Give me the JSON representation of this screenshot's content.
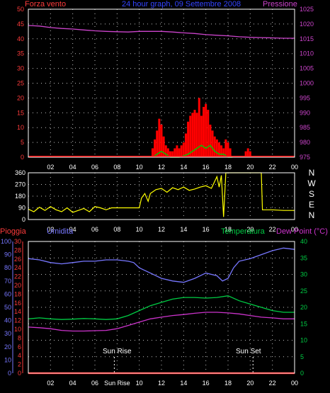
{
  "header": {
    "left": "Forza vento",
    "center": "24 hour graph, 09 Settembre 2008",
    "right": "Pressione"
  },
  "legend": {
    "pioggia": "Pioggia",
    "umidita": "Umidita",
    "temperatura": "Temperatura",
    "dewpoint": "Dew Point (°C)"
  },
  "markers": {
    "sunrise": "Sun Rise",
    "sunset": "Sun Set"
  },
  "compass": [
    "N",
    "W",
    "S",
    "E",
    "N"
  ],
  "colors": {
    "background": "#000000",
    "axes": "#ffffff",
    "grid": "#ffffff",
    "wind_speed": "#ff0000",
    "wind_gust": "#00cc00",
    "pressure": "#cc44cc",
    "direction": "#ffff00",
    "humidity": "#7777ff",
    "temperature": "#00cc44",
    "dewpoint": "#cc33cc",
    "rain": "#ff0000"
  },
  "chart_data": [
    {
      "type": "line",
      "panel": "wind_pressure",
      "title": "24 hour graph, 09 Settembre 2008",
      "x_tick_labels": [
        "02",
        "04",
        "06",
        "08",
        "10",
        "12",
        "14",
        "16",
        "18",
        "20",
        "22",
        "00"
      ],
      "x_range_hours": [
        0,
        24
      ],
      "y_left": {
        "label": "Forza vento",
        "ticks": [
          0,
          5,
          10,
          15,
          20,
          25,
          30,
          35,
          40,
          45,
          50
        ],
        "ylim": [
          0,
          50
        ]
      },
      "y_right": {
        "label": "Pressione",
        "ticks": [
          975,
          980,
          985,
          990,
          995,
          1000,
          1005,
          1010,
          1015,
          1020,
          1025
        ],
        "ylim": [
          975,
          1025
        ]
      },
      "series": [
        {
          "name": "Pressione",
          "axis": "right",
          "color": "#cc44cc",
          "x": [
            0,
            1,
            2,
            3,
            4,
            5,
            6,
            7,
            8,
            9,
            10,
            11,
            12,
            13,
            14,
            15,
            16,
            17,
            18,
            19,
            20,
            21,
            22,
            23,
            24
          ],
          "values": [
            1019.5,
            1019.3,
            1018.8,
            1018.5,
            1018.3,
            1018.0,
            1017.7,
            1017.5,
            1017.4,
            1017.3,
            1017.5,
            1017.5,
            1017.5,
            1017.3,
            1017.0,
            1016.8,
            1016.4,
            1016.2,
            1016.0,
            1015.7,
            1015.5,
            1015.4,
            1015.3,
            1015.2,
            1015.2
          ]
        },
        {
          "name": "Forza vento",
          "axis": "left",
          "color": "#ff0000",
          "x": [
            11.2,
            11.4,
            11.6,
            11.8,
            12.0,
            12.2,
            12.4,
            12.6,
            12.8,
            13.0,
            13.2,
            13.4,
            13.6,
            13.8,
            14.0,
            14.2,
            14.4,
            14.6,
            14.8,
            15.0,
            15.2,
            15.4,
            15.6,
            15.8,
            16.0,
            16.2,
            16.4,
            16.6,
            16.8,
            17.0,
            17.2,
            17.4,
            17.6,
            17.8,
            18.0,
            18.2,
            19.6,
            19.8,
            20.0
          ],
          "values": [
            3,
            6,
            9,
            13,
            11,
            7,
            4,
            3,
            2,
            2,
            3,
            4,
            3,
            4,
            5,
            8,
            12,
            14,
            15,
            16,
            15,
            20,
            14,
            17,
            18,
            16,
            11,
            9,
            7,
            6,
            5,
            4,
            3,
            6,
            5,
            3,
            2,
            3,
            2
          ]
        },
        {
          "name": "Raffica",
          "axis": "left",
          "color": "#00cc00",
          "x": [
            11.2,
            11.6,
            12.0,
            12.4,
            12.8,
            13.6,
            14.4,
            14.8,
            15.2,
            15.6,
            16.0,
            16.4,
            16.8,
            17.2,
            17.6,
            18.0,
            18.4
          ],
          "values": [
            0,
            1,
            2,
            1,
            0,
            0,
            1,
            2,
            3,
            4,
            3,
            4,
            2,
            1,
            1,
            0,
            0
          ]
        }
      ]
    },
    {
      "type": "line",
      "panel": "wind_direction",
      "x_tick_labels": [
        "02",
        "04",
        "06",
        "08",
        "10",
        "12",
        "14",
        "16",
        "18",
        "20",
        "22",
        "00"
      ],
      "x_range_hours": [
        0,
        24
      ],
      "y_left": {
        "ticks": [
          0,
          90,
          180,
          270,
          360
        ],
        "ylim": [
          0,
          360
        ]
      },
      "y_right": {
        "ticks": [
          "N",
          "W",
          "S",
          "E",
          "N"
        ]
      },
      "series": [
        {
          "name": "Direzione",
          "color": "#ffff00",
          "x": [
            0,
            0.5,
            1,
            1.5,
            2,
            2.5,
            3,
            3.5,
            4,
            4.5,
            5,
            5.5,
            6,
            6.5,
            7,
            7.5,
            8,
            9,
            10,
            10.2,
            10.5,
            10.8,
            11,
            11.5,
            12,
            12.5,
            13,
            13.5,
            14,
            14.5,
            15,
            15.5,
            16,
            16.5,
            17,
            17.2,
            17.4,
            17.6,
            17.8,
            18,
            18.2,
            19,
            20,
            21,
            21.1,
            22,
            23,
            24
          ],
          "values": [
            80,
            60,
            95,
            70,
            100,
            75,
            60,
            90,
            55,
            70,
            85,
            60,
            100,
            90,
            75,
            90,
            90,
            90,
            90,
            165,
            200,
            140,
            200,
            230,
            240,
            210,
            245,
            230,
            250,
            225,
            235,
            250,
            260,
            240,
            330,
            250,
            340,
            20,
            360,
            360,
            360,
            360,
            360,
            360,
            75,
            75,
            70,
            70
          ]
        }
      ]
    },
    {
      "type": "line",
      "panel": "temperature_humidity",
      "x_tick_labels": [
        "02",
        "04",
        "06",
        "Sun Rise",
        "10",
        "12",
        "14",
        "16",
        "18",
        "20",
        "22",
        "00"
      ],
      "x_range_hours": [
        0,
        24
      ],
      "y_pioggia": {
        "label": "Pioggia",
        "ticks": [
          0,
          2,
          4,
          6,
          8,
          10,
          12,
          14,
          16,
          18,
          20,
          22,
          24,
          26,
          28,
          30
        ],
        "ylim": [
          0,
          30
        ]
      },
      "y_umidita": {
        "label": "Umidita",
        "ticks": [
          0,
          10,
          20,
          30,
          40,
          50,
          60,
          70,
          80,
          90,
          100
        ],
        "ylim": [
          0,
          100
        ]
      },
      "y_right": {
        "label": "Temperatura / Dew Point (°C)",
        "ticks": [
          0,
          5,
          10,
          15,
          20,
          25,
          30,
          35,
          40
        ],
        "ylim": [
          0,
          40
        ]
      },
      "annotations": [
        {
          "text": "Sun Rise",
          "x_hour": 7.75
        },
        {
          "text": "Sun Set",
          "x_hour": 20.25
        }
      ],
      "series": [
        {
          "name": "Umidita",
          "axis": "umidita",
          "color": "#7777ff",
          "x": [
            0,
            1,
            2,
            3,
            4,
            5,
            6,
            7,
            8,
            9,
            9.5,
            10,
            10.5,
            11,
            12,
            13,
            14,
            15,
            16,
            17,
            17.5,
            18,
            18.5,
            19,
            20,
            21,
            22,
            23,
            24
          ],
          "values": [
            87,
            86,
            84,
            83,
            84,
            85,
            85,
            86,
            86,
            85,
            84,
            80,
            78,
            76,
            72,
            70,
            69,
            72,
            76,
            74,
            70,
            72,
            80,
            85,
            87,
            90,
            93,
            95,
            94
          ]
        },
        {
          "name": "Temperatura",
          "axis": "right",
          "color": "#00cc44",
          "x": [
            0,
            1,
            2,
            3,
            4,
            5,
            6,
            7,
            8,
            9,
            10,
            11,
            12,
            13,
            14,
            15,
            16,
            17,
            18,
            19,
            20,
            21,
            22,
            23,
            24
          ],
          "values": [
            16.5,
            16.8,
            16.5,
            16.3,
            16.4,
            16.6,
            16.5,
            16.3,
            16.5,
            17.5,
            19.0,
            20.5,
            21.5,
            22.5,
            23.0,
            23.0,
            22.8,
            23.0,
            23.5,
            22.0,
            21.0,
            20.0,
            19.0,
            18.5,
            18.5
          ]
        },
        {
          "name": "Dew Point",
          "axis": "right",
          "color": "#cc33cc",
          "x": [
            0,
            1,
            2,
            3,
            4,
            5,
            6,
            7,
            8,
            9,
            10,
            11,
            12,
            13,
            14,
            15,
            16,
            17,
            18,
            19,
            20,
            21,
            22,
            23,
            24
          ],
          "values": [
            14.0,
            13.8,
            13.5,
            13.0,
            12.8,
            12.8,
            12.9,
            13.0,
            13.5,
            14.5,
            15.5,
            16.5,
            17.0,
            17.5,
            17.8,
            18.2,
            18.5,
            18.5,
            18.3,
            18.0,
            17.5,
            17.0,
            16.8,
            16.5,
            16.5
          ]
        },
        {
          "name": "Pioggia",
          "axis": "pioggia",
          "color": "#ff0000",
          "x": [
            0,
            24
          ],
          "values": [
            0,
            0
          ]
        }
      ]
    }
  ]
}
